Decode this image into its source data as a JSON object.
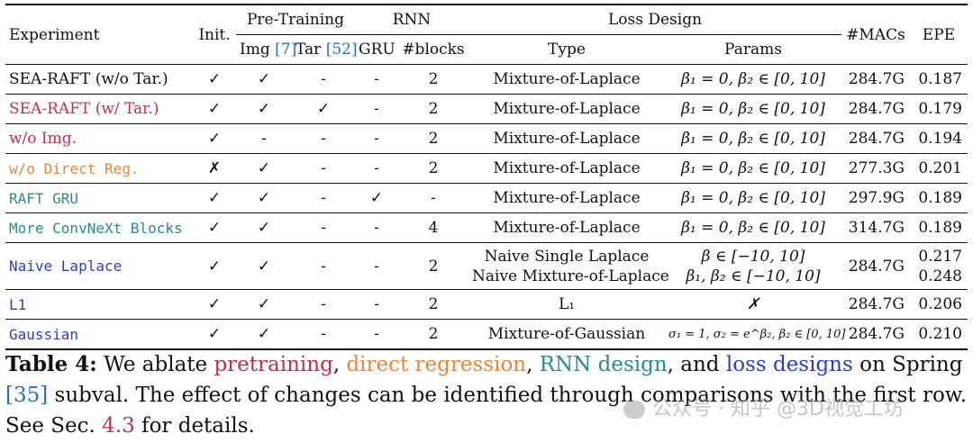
{
  "colors": {
    "black": "#111111",
    "crimson": "#c0304a",
    "orange": "#e8863a",
    "teal": "#2a8a8a",
    "blue": "#2c3fc4",
    "ref_blue": "#2b6fb3"
  },
  "header": {
    "experiment": "Experiment",
    "init": "Init.",
    "pretraining": "Pre-Training",
    "img": "Img",
    "img_ref": "[7]",
    "tar": "Tar",
    "tar_ref": "[52]",
    "rnn": "RNN",
    "gru": "GRU",
    "blocks": "#blocks",
    "loss_design": "Loss Design",
    "type": "Type",
    "params": "Params",
    "macs": "#MACs",
    "epe": "EPE"
  },
  "rows": [
    {
      "experiment": "SEA-RAFT (w/o Tar.)",
      "color": "#111111",
      "init": "✓",
      "img": "✓",
      "tar": "-",
      "gru": "-",
      "blocks": "2",
      "type": "Mixture-of-Laplace",
      "params": "β₁ = 0, β₂ ∈ [0, 10]",
      "macs": "284.7G",
      "epe": "0.187"
    },
    {
      "experiment": "SEA-RAFT (w/ Tar.)",
      "color": "#c0304a",
      "init": "✓",
      "img": "✓",
      "tar": "✓",
      "gru": "-",
      "blocks": "2",
      "type": "Mixture-of-Laplace",
      "params": "β₁ = 0, β₂ ∈ [0, 10]",
      "macs": "284.7G",
      "epe": "0.179"
    },
    {
      "experiment": "w/o Img.",
      "color": "#c0304a",
      "init": "✓",
      "img": "-",
      "tar": "-",
      "gru": "-",
      "blocks": "2",
      "type": "Mixture-of-Laplace",
      "params": "β₁ = 0, β₂ ∈ [0, 10]",
      "macs": "284.7G",
      "epe": "0.194"
    },
    {
      "experiment": "w/o Direct Reg.",
      "color": "#e8863a",
      "init": "✗",
      "img": "✓",
      "tar": "-",
      "gru": "-",
      "blocks": "2",
      "type": "Mixture-of-Laplace",
      "params": "β₁ = 0, β₂ ∈ [0, 10]",
      "macs": "277.3G",
      "epe": "0.201"
    },
    {
      "experiment": "RAFT GRU",
      "color": "#2a8a8a",
      "init": "✓",
      "img": "✓",
      "tar": "-",
      "gru": "✓",
      "blocks": "-",
      "type": "Mixture-of-Laplace",
      "params": "β₁ = 0, β₂ ∈ [0, 10]",
      "macs": "297.9G",
      "epe": "0.189"
    },
    {
      "experiment": "More ConvNeXt Blocks",
      "color": "#2a8a8a",
      "init": "✓",
      "img": "✓",
      "tar": "-",
      "gru": "-",
      "blocks": "4",
      "type": "Mixture-of-Laplace",
      "params": "β₁ = 0, β₂ ∈ [0, 10]",
      "macs": "314.7G",
      "epe": "0.189"
    },
    {
      "experiment": "Naive Laplace",
      "color": "#2c3fc4",
      "init": "✓",
      "img": "✓",
      "tar": "-",
      "gru": "-",
      "blocks": "2",
      "type": "Naive Single Laplace",
      "type2": "Naive Mixture-of-Laplace",
      "params": "β ∈ [−10, 10]",
      "params2": "β₁, β₂ ∈ [−10, 10]",
      "macs": "284.7G",
      "epe": "0.217",
      "epe2": "0.248"
    },
    {
      "experiment": "L1",
      "color": "#2c3fc4",
      "init": "✓",
      "img": "✓",
      "tar": "-",
      "gru": "-",
      "blocks": "2",
      "type": "L₁",
      "params": "✗",
      "macs": "284.7G",
      "epe": "0.206"
    },
    {
      "experiment": "Gaussian",
      "color": "#2c3fc4",
      "init": "✓",
      "img": "✓",
      "tar": "-",
      "gru": "-",
      "blocks": "2",
      "type": "Mixture-of-Gaussian",
      "params": "σ₁ = 1, σ₂ = e^β₂, β₂ ∈ [0, 10]",
      "macs": "284.7G",
      "epe": "0.210"
    }
  ],
  "caption": {
    "label": "Table 4:",
    "t1": " We ablate ",
    "pretraining": "pretraining",
    "t2": ", ",
    "direct_regression": "direct regression",
    "t3": ", ",
    "rnn_design": "RNN design",
    "t4": ", and ",
    "loss_designs": "loss designs",
    "t5": " on Spring ",
    "ref35": "[35]",
    "t6": " subval. The effect of changes can be identified through comparisons with the first row. See Sec. ",
    "sec": "4.3",
    "t7": " for details."
  },
  "watermark": "公众号 · 知乎 @3D视觉工坊"
}
